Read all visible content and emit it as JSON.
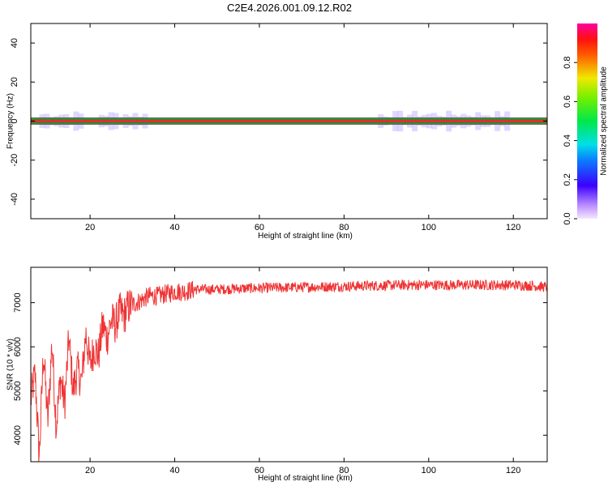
{
  "title": "C2E4.2026.001.09.12.R02",
  "chart_data": [
    {
      "type": "heatmap",
      "xlabel": "Height of straight line (km)",
      "ylabel": "Frequency (Hz)",
      "xlim": [
        6,
        128
      ],
      "ylim": [
        -50,
        50
      ],
      "xticks": [
        20,
        40,
        60,
        80,
        100,
        120
      ],
      "yticks": [
        40,
        20,
        0,
        -20,
        -40
      ],
      "xtick_labels": [
        "20",
        "40",
        "60",
        "80",
        "100",
        "120"
      ],
      "ytick_labels": [
        "40",
        "20",
        "0",
        "-20",
        "-40"
      ],
      "grid": false,
      "band_center_hz": 0,
      "band_edges_hz": [
        -1.5,
        1.5
      ],
      "weak_patches": [
        {
          "x": [
            8,
            18
          ],
          "amplitude": 0.05
        },
        {
          "x": [
            22,
            33
          ],
          "amplitude": 0.05
        },
        {
          "x": [
            88,
            118
          ],
          "amplitude": 0.08
        }
      ],
      "colorbar": {
        "label": "Normalized spectral amplitude",
        "ticks": [
          0.0,
          0.2,
          0.4,
          0.6,
          0.8
        ],
        "tick_labels": [
          "0.0",
          "0.2",
          "0.4",
          "0.6",
          "0.8"
        ],
        "range": [
          0,
          1
        ]
      }
    },
    {
      "type": "line",
      "xlabel": "Height of straight line (km)",
      "ylabel": "SNR (10 * v/v)",
      "xlim": [
        6,
        128
      ],
      "ylim": [
        3400,
        7800
      ],
      "xticks": [
        20,
        40,
        60,
        80,
        100,
        120
      ],
      "yticks": [
        4000,
        5000,
        6000,
        7000
      ],
      "xtick_labels": [
        "20",
        "40",
        "60",
        "80",
        "100",
        "120"
      ],
      "ytick_labels": [
        "4000",
        "5000",
        "6000",
        "7000"
      ],
      "grid": false,
      "series": [
        {
          "color": "#ef3333",
          "x": [
            6,
            7,
            8,
            9,
            10,
            11,
            12,
            13,
            14,
            15,
            16,
            17,
            18,
            19,
            20,
            21,
            22,
            23,
            24,
            25,
            26,
            27,
            28,
            29,
            30,
            32,
            34,
            36,
            38,
            40,
            42,
            45,
            48,
            50,
            55,
            60,
            65,
            70,
            75,
            80,
            85,
            90,
            95,
            100,
            105,
            110,
            115,
            120,
            125,
            128
          ],
          "y": [
            4800,
            5400,
            3500,
            5900,
            4300,
            6100,
            4200,
            5300,
            4700,
            6200,
            5000,
            5500,
            5200,
            6300,
            5600,
            6000,
            5800,
            6500,
            6200,
            6600,
            6500,
            6800,
            6700,
            6900,
            6950,
            7050,
            7150,
            7150,
            7200,
            7250,
            7250,
            7300,
            7300,
            7300,
            7320,
            7330,
            7340,
            7350,
            7360,
            7370,
            7380,
            7390,
            7400,
            7400,
            7400,
            7400,
            7400,
            7400,
            7380,
            7350
          ]
        }
      ]
    }
  ]
}
